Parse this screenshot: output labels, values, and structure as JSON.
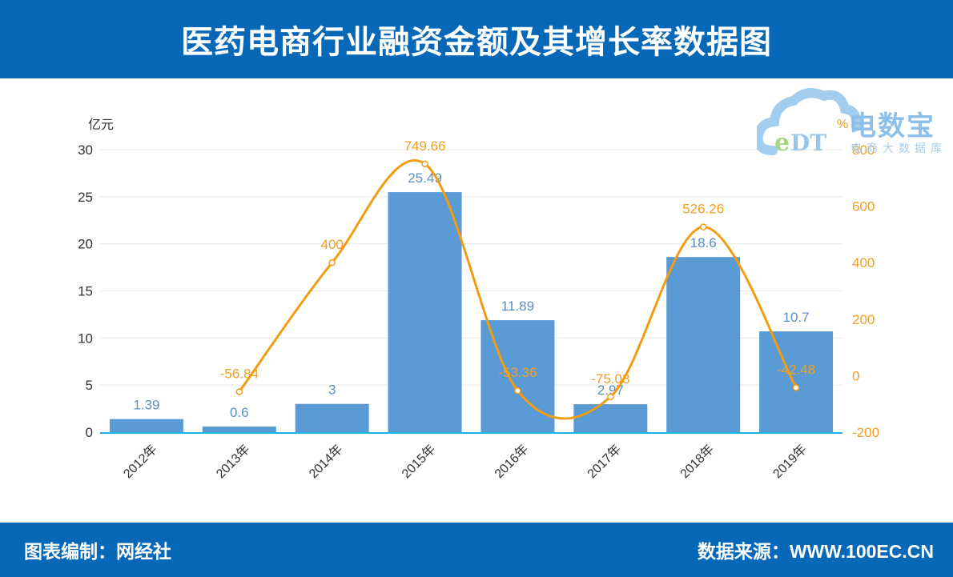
{
  "header": {
    "title": "医药电商行业融资金额及其增长率数据图"
  },
  "footer": {
    "left": "图表编制：网经社",
    "right": "数据来源：WWW.100EC.CN"
  },
  "watermark": {
    "brand": "电数宝",
    "subtitle": "电商大数据库",
    "logo_text": "eDT"
  },
  "colors": {
    "header_bg": "#0868b8",
    "bar": "#5b9bd5",
    "bar_label": "#5b8fc4",
    "line": "#f39c12",
    "line_label": "#f0a020",
    "axis_line": "#1eb4e8",
    "grid": "#e8e8e8",
    "left_tick": "#333333",
    "right_tick": "#f0a020"
  },
  "chart_data": {
    "type": "bar+line",
    "title": "医药电商行业融资金额及其增长率数据图",
    "categories": [
      "2012年",
      "2013年",
      "2014年",
      "2015年",
      "2016年",
      "2017年",
      "2018年",
      "2019年"
    ],
    "series": [
      {
        "name": "融资金额",
        "type": "bar",
        "axis": "left",
        "unit": "亿元",
        "values": [
          1.39,
          0.6,
          3,
          25.49,
          11.89,
          2.97,
          18.6,
          10.7
        ]
      },
      {
        "name": "增长率",
        "type": "line",
        "axis": "right",
        "unit": "%",
        "smooth": true,
        "values": [
          null,
          -56.84,
          400,
          749.66,
          -53.36,
          -75.03,
          526.26,
          -42.48
        ]
      }
    ],
    "left_axis": {
      "label": "亿元",
      "ylim": [
        0,
        30
      ],
      "ticks": [
        0,
        5,
        10,
        15,
        20,
        25,
        30
      ]
    },
    "right_axis": {
      "label": "%",
      "ylim": [
        -200,
        800
      ],
      "ticks": [
        -200,
        0,
        200,
        400,
        600,
        800
      ]
    },
    "xlabel": "",
    "grid": true,
    "legend": false
  }
}
